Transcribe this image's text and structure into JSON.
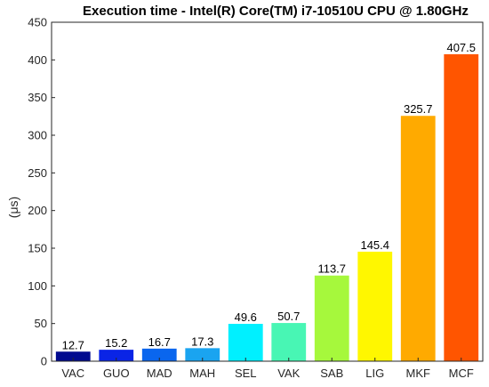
{
  "chart_data": {
    "type": "bar",
    "title": "Execution time - Intel(R) Core(TM) i7-10510U CPU @ 1.80GHz",
    "xlabel": "",
    "ylabel": "(μs)",
    "ylim": [
      0,
      450
    ],
    "yticks": [
      "0",
      "50",
      "100",
      "150",
      "200",
      "250",
      "300",
      "350",
      "400",
      "450"
    ],
    "grid": false,
    "categories": [
      "VAC",
      "GUO",
      "MAD",
      "MAH",
      "SEL",
      "VAK",
      "SAB",
      "LIG",
      "MKF",
      "MCF"
    ],
    "values": [
      12.7,
      15.2,
      16.7,
      17.3,
      49.6,
      50.7,
      113.7,
      145.4,
      325.7,
      407.5
    ],
    "value_labels": [
      "12.7",
      "15.2",
      "16.7",
      "17.3",
      "49.6",
      "50.7",
      "113.7",
      "145.4",
      "325.7",
      "407.5"
    ],
    "colors": [
      "#000a8f",
      "#0a24e6",
      "#0a66ee",
      "#1aa4f0",
      "#00f0ff",
      "#48f6b4",
      "#a6f83c",
      "#fff700",
      "#ffaa00",
      "#ff5500"
    ]
  }
}
